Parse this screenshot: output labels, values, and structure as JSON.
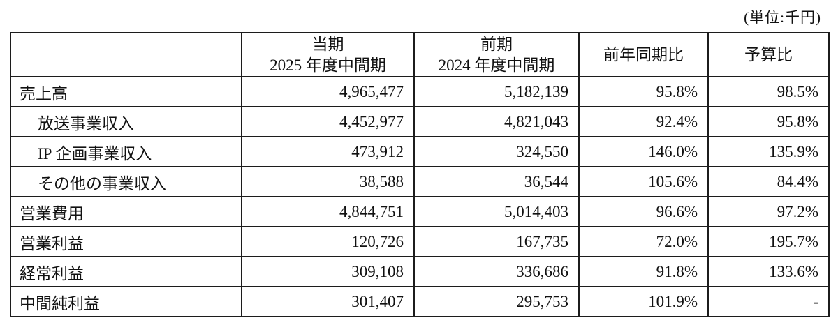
{
  "unit_label": "(単位:千円)",
  "table": {
    "headers": {
      "label_col": "",
      "current_line1": "当期",
      "current_line2": "2025 年度中間期",
      "prior_line1": "前期",
      "prior_line2": "2024 年度中間期",
      "yoy": "前年同期比",
      "budget": "予算比"
    },
    "rows": [
      {
        "label": "売上高",
        "indent": false,
        "current": "4,965,477",
        "prior": "5,182,139",
        "yoy": "95.8%",
        "budget": "98.5%"
      },
      {
        "label": "放送事業収入",
        "indent": true,
        "current": "4,452,977",
        "prior": "4,821,043",
        "yoy": "92.4%",
        "budget": "95.8%"
      },
      {
        "label": "IP 企画事業収入",
        "indent": true,
        "current": "473,912",
        "prior": "324,550",
        "yoy": "146.0%",
        "budget": "135.9%"
      },
      {
        "label": "その他の事業収入",
        "indent": true,
        "current": "38,588",
        "prior": "36,544",
        "yoy": "105.6%",
        "budget": "84.4%"
      },
      {
        "label": "営業費用",
        "indent": false,
        "current": "4,844,751",
        "prior": "5,014,403",
        "yoy": "96.6%",
        "budget": "97.2%"
      },
      {
        "label": "営業利益",
        "indent": false,
        "current": "120,726",
        "prior": "167,735",
        "yoy": "72.0%",
        "budget": "195.7%"
      },
      {
        "label": "経常利益",
        "indent": false,
        "current": "309,108",
        "prior": "336,686",
        "yoy": "91.8%",
        "budget": "133.6%"
      },
      {
        "label": "中間純利益",
        "indent": false,
        "current": "301,407",
        "prior": "295,753",
        "yoy": "101.9%",
        "budget": "-"
      }
    ]
  }
}
